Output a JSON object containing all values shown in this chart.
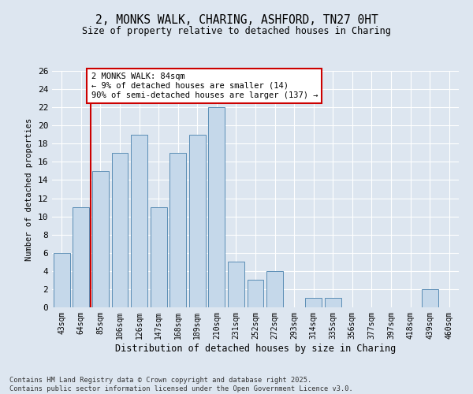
{
  "title_line1": "2, MONKS WALK, CHARING, ASHFORD, TN27 0HT",
  "title_line2": "Size of property relative to detached houses in Charing",
  "xlabel": "Distribution of detached houses by size in Charing",
  "ylabel": "Number of detached properties",
  "bar_color": "#c5d8ea",
  "bar_edge_color": "#5a8db5",
  "categories": [
    "43sqm",
    "64sqm",
    "85sqm",
    "106sqm",
    "126sqm",
    "147sqm",
    "168sqm",
    "189sqm",
    "210sqm",
    "231sqm",
    "252sqm",
    "272sqm",
    "293sqm",
    "314sqm",
    "335sqm",
    "356sqm",
    "377sqm",
    "397sqm",
    "418sqm",
    "439sqm",
    "460sqm"
  ],
  "values": [
    6,
    11,
    15,
    17,
    19,
    11,
    17,
    19,
    22,
    5,
    3,
    4,
    0,
    1,
    1,
    0,
    0,
    0,
    0,
    2,
    0
  ],
  "ylim": [
    0,
    26
  ],
  "yticks": [
    0,
    2,
    4,
    6,
    8,
    10,
    12,
    14,
    16,
    18,
    20,
    22,
    24,
    26
  ],
  "vline_x": 1.5,
  "vline_color": "#cc0000",
  "annotation_text": "2 MONKS WALK: 84sqm\n← 9% of detached houses are smaller (14)\n90% of semi-detached houses are larger (137) →",
  "annotation_box_color": "#ffffff",
  "annotation_box_edge": "#cc0000",
  "footer_text": "Contains HM Land Registry data © Crown copyright and database right 2025.\nContains public sector information licensed under the Open Government Licence v3.0.",
  "background_color": "#dde6f0",
  "plot_background": "#dde6f0"
}
